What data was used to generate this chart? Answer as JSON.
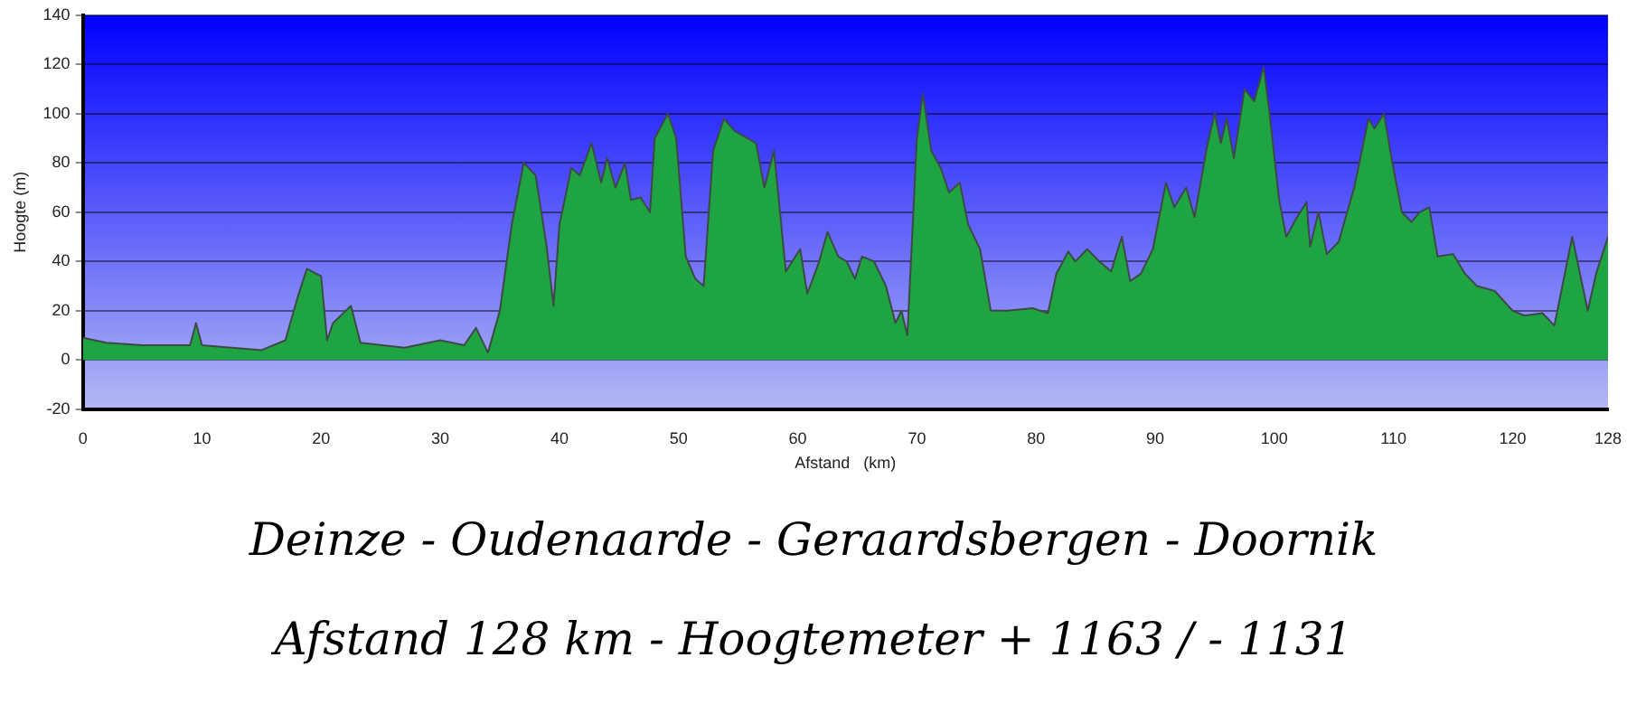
{
  "chart_data": {
    "type": "area",
    "title": "Deinze  -  Oudenaarde  -  Geraardsbergen  -  Doornik",
    "subtitle": "Afstand  128 km   -   Hoogtemeter  + 1163 / - 1131",
    "xlabel": "Afstand   (km)",
    "ylabel": "Hoogte (m)",
    "xlim": [
      0,
      128
    ],
    "xticks": [
      0,
      10,
      20,
      30,
      40,
      50,
      60,
      70,
      80,
      90,
      100,
      110,
      120,
      128
    ],
    "ylim": [
      -20,
      140
    ],
    "yticks": [
      -20,
      0,
      20,
      40,
      60,
      80,
      100,
      120,
      140
    ],
    "grid": "y",
    "legend": false,
    "marker": "none",
    "series": [
      {
        "color": "#1fa443",
        "x": [
          0,
          2,
          5,
          9,
          9.5,
          10,
          15,
          17,
          18,
          18.8,
          20,
          20.5,
          21,
          22.5,
          23.3,
          27,
          30,
          32,
          33,
          34,
          35,
          36,
          37,
          38,
          38.9,
          39.5,
          40,
          41,
          41.7,
          42.7,
          43.5,
          44,
          44.7,
          45.5,
          46,
          46.8,
          47.6,
          48,
          49.1,
          49.8,
          50.6,
          51.4,
          52.1,
          52.9,
          53.8,
          54.7,
          56.5,
          57.2,
          58,
          59,
          60.2,
          60.8,
          61.8,
          62.5,
          63.4,
          64.1,
          64.8,
          65.4,
          66.4,
          67.4,
          68.2,
          68.7,
          69.2,
          70,
          70.5,
          71.2,
          72,
          72.7,
          73.6,
          74.3,
          75.3,
          76.2,
          77.6,
          79.7,
          81,
          81.7,
          82.7,
          83.3,
          84.3,
          85.3,
          86.3,
          87.2,
          87.9,
          88.8,
          89.8,
          90.9,
          91.6,
          92.6,
          93.3,
          94.4,
          95,
          95.5,
          96,
          96.6,
          97.5,
          98.3,
          99.1,
          99.6,
          100.4,
          101,
          101.9,
          102.7,
          103,
          103.7,
          104.4,
          105.4,
          106.7,
          107.9,
          108.4,
          109.2,
          109.9,
          110.7,
          111.5,
          112.2,
          113,
          113.7,
          115,
          116,
          117,
          118.5,
          120,
          121,
          122.5,
          123.5,
          125,
          126.3,
          127,
          128
        ],
        "values": [
          9,
          7,
          6,
          6,
          15,
          6,
          4,
          8,
          25,
          37,
          34,
          8,
          15,
          22,
          7,
          5,
          8,
          6,
          13,
          3,
          20,
          55,
          80,
          75,
          47,
          22,
          55,
          78,
          75,
          88,
          72,
          82,
          70,
          80,
          65,
          66,
          60,
          90,
          100,
          90,
          42,
          33,
          30,
          85,
          98,
          93,
          88,
          70,
          85,
          36,
          45,
          27,
          40,
          52,
          42,
          40,
          33,
          42,
          40,
          30,
          15,
          20,
          10,
          90,
          108,
          85,
          78,
          68,
          72,
          55,
          45,
          20,
          20,
          21,
          19,
          35,
          44,
          40,
          45,
          40,
          36,
          50,
          32,
          35,
          45,
          72,
          62,
          70,
          58,
          88,
          100,
          88,
          98,
          82,
          110,
          105,
          119,
          100,
          65,
          50,
          58,
          64,
          46,
          60,
          43,
          48,
          70,
          98,
          94,
          100,
          80,
          60,
          56,
          60,
          62,
          42,
          43,
          35,
          30,
          28,
          20,
          18,
          19,
          14,
          50,
          20,
          35,
          50
        ]
      }
    ]
  }
}
